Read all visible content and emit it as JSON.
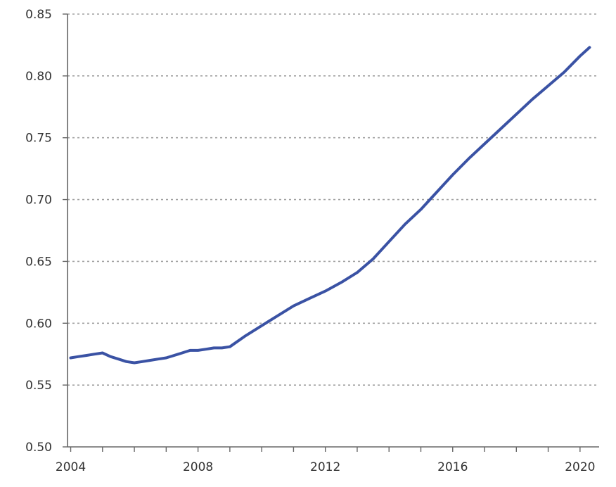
{
  "chart_data": {
    "type": "line",
    "title": "",
    "xlabel": "",
    "ylabel": "",
    "xlim": [
      2003.9,
      2020.6
    ],
    "ylim": [
      0.5,
      0.85
    ],
    "yticks": [
      "0.50",
      "0.55",
      "0.60",
      "0.65",
      "0.70",
      "0.75",
      "0.80",
      "0.85"
    ],
    "xticks": [
      "2004",
      "2008",
      "2012",
      "2016",
      "2020"
    ],
    "grid": "horizontal-dotted",
    "legend": "none",
    "colors": {
      "line": "#3a52a4",
      "grid": "#a0a0a0",
      "axis": "#666666"
    },
    "series": [
      {
        "x": [
          2004.0,
          2004.25,
          2004.5,
          2004.75,
          2005.0,
          2005.25,
          2005.5,
          2005.75,
          2006.0,
          2006.25,
          2006.5,
          2006.75,
          2007.0,
          2007.25,
          2007.5,
          2007.75,
          2008.0,
          2008.25,
          2008.5,
          2008.75,
          2009.0,
          2009.5,
          2010.0,
          2010.5,
          2011.0,
          2011.5,
          2012.0,
          2012.5,
          2013.0,
          2013.5,
          2014.0,
          2014.5,
          2015.0,
          2015.5,
          2016.0,
          2016.5,
          2017.0,
          2017.5,
          2018.0,
          2018.5,
          2019.0,
          2019.5,
          2020.0,
          2020.3
        ],
        "y": [
          0.572,
          0.573,
          0.574,
          0.575,
          0.576,
          0.573,
          0.571,
          0.569,
          0.568,
          0.569,
          0.57,
          0.571,
          0.572,
          0.574,
          0.576,
          0.578,
          0.578,
          0.579,
          0.58,
          0.58,
          0.581,
          0.59,
          0.598,
          0.606,
          0.614,
          0.62,
          0.626,
          0.633,
          0.641,
          0.652,
          0.666,
          0.68,
          0.692,
          0.706,
          0.72,
          0.733,
          0.745,
          0.757,
          0.769,
          0.781,
          0.792,
          0.803,
          0.816,
          0.823
        ]
      }
    ]
  }
}
